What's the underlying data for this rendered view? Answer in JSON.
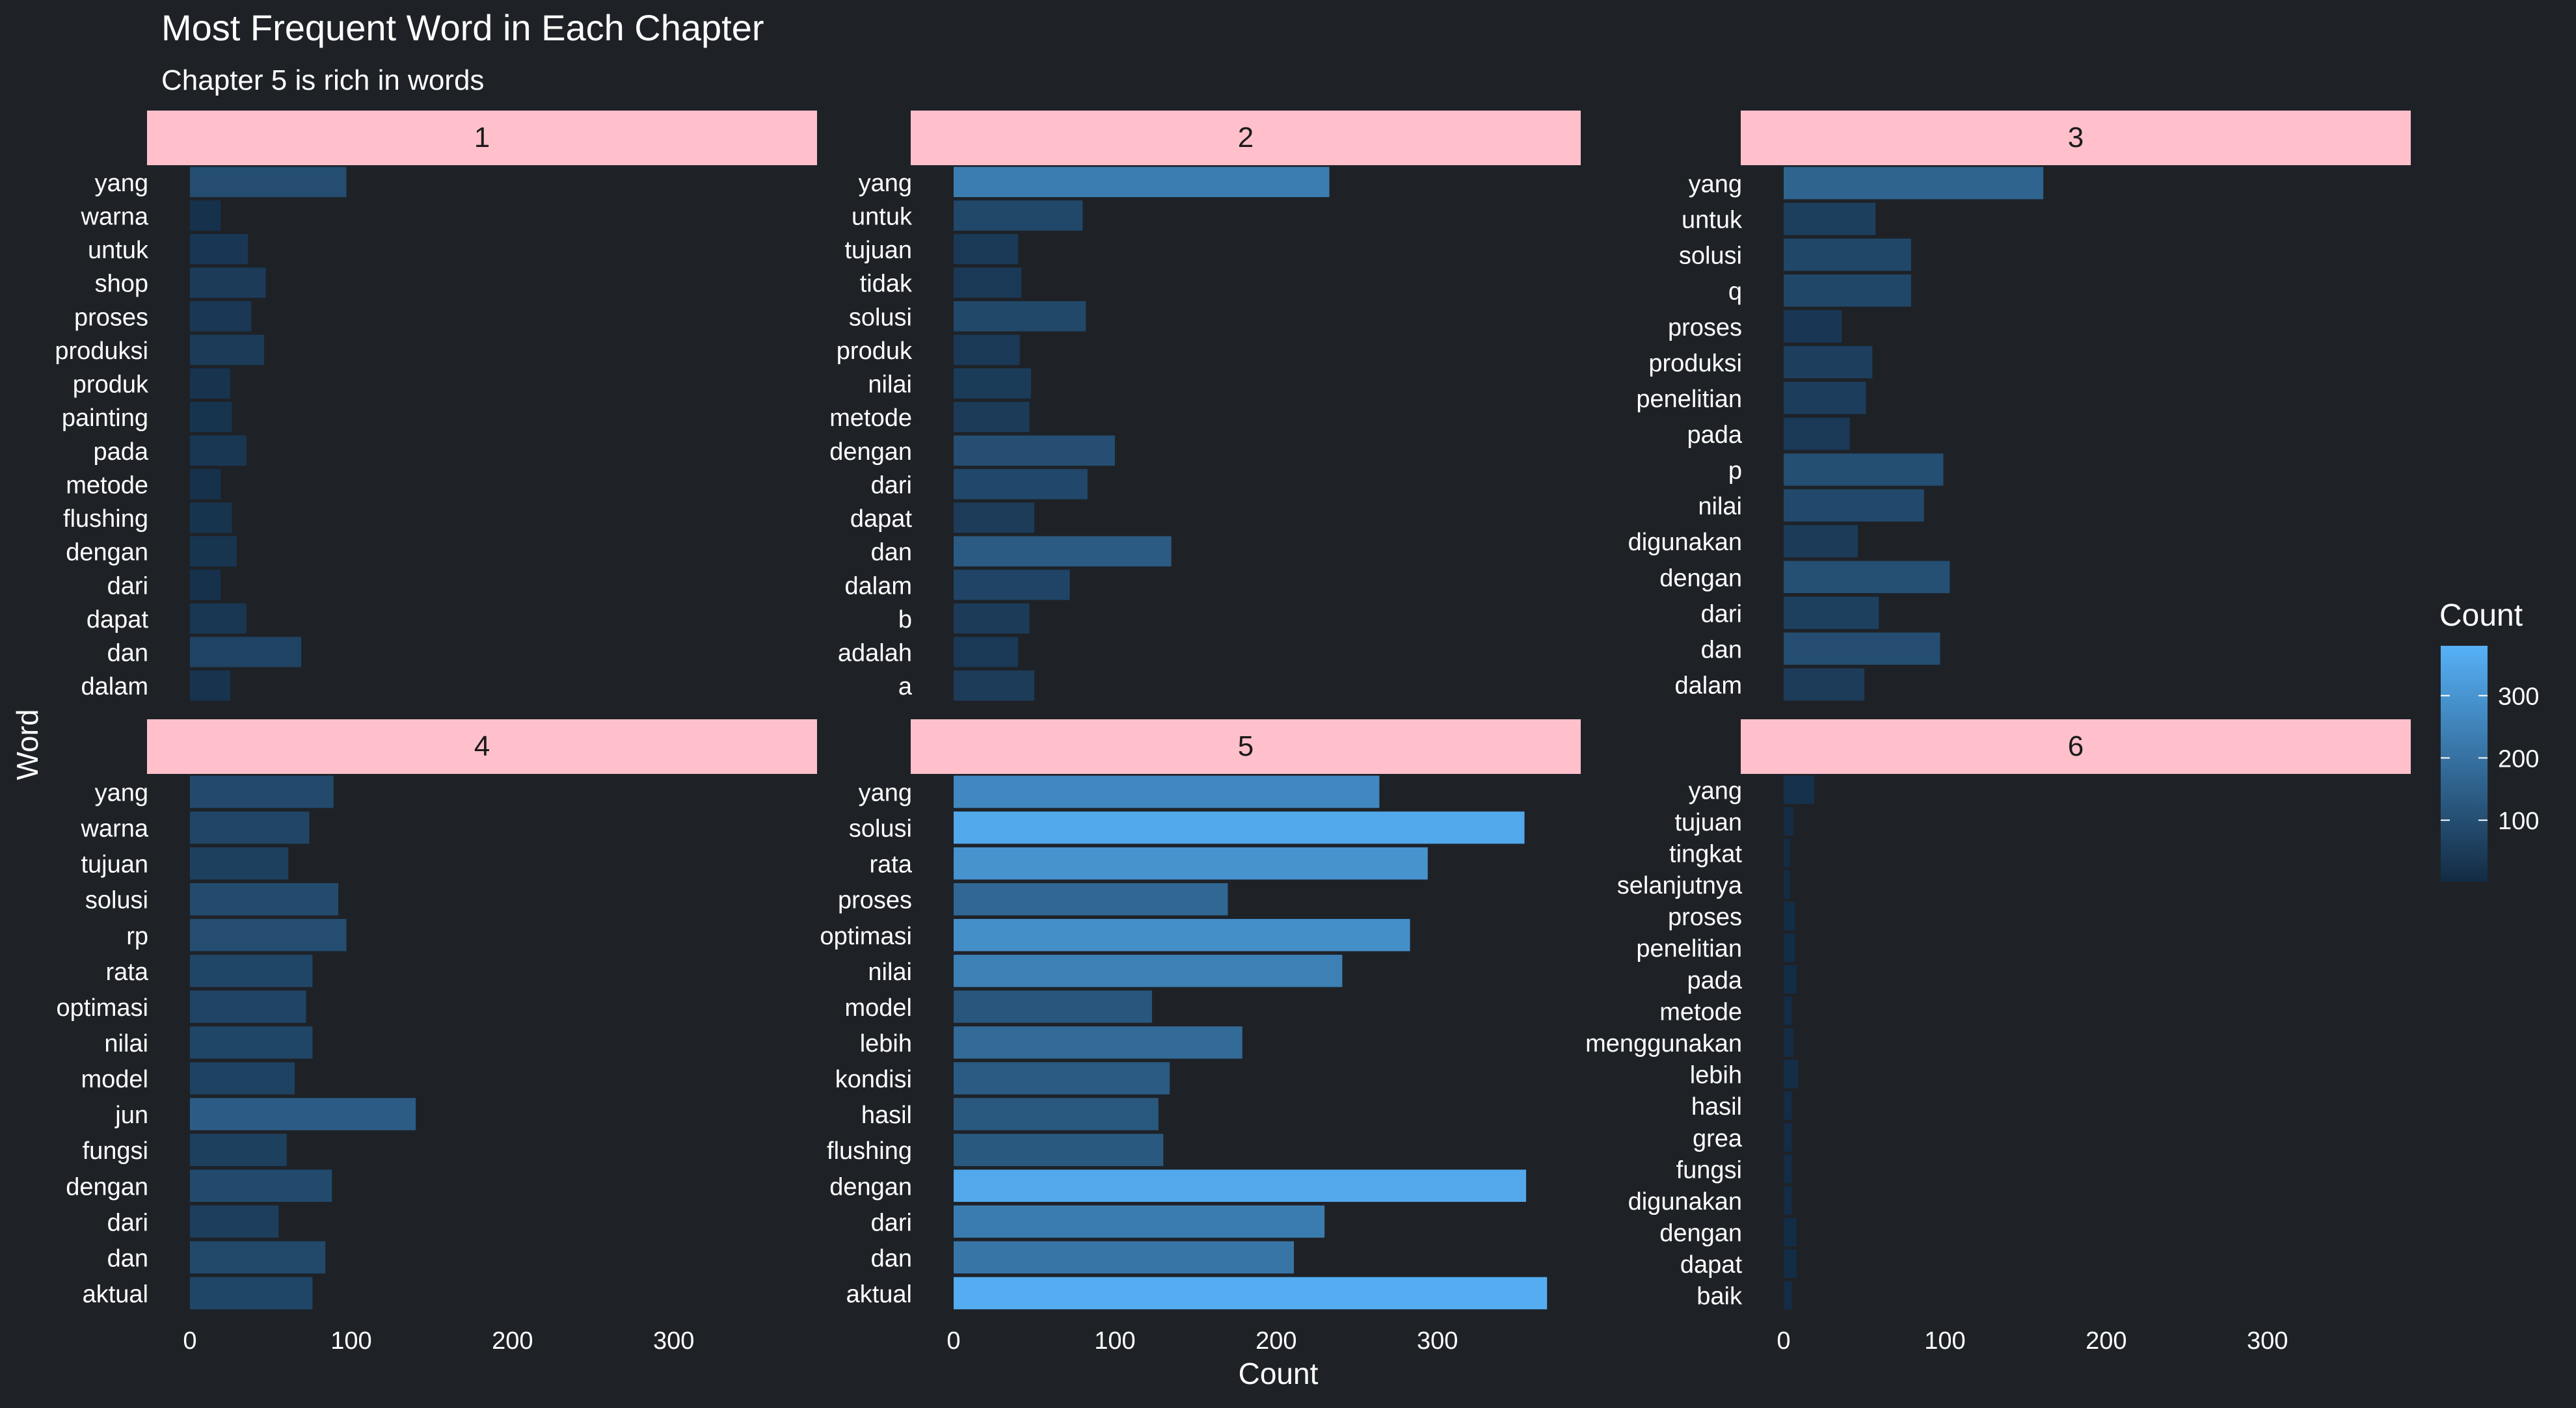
{
  "chart_data": {
    "type": "bar",
    "orientation": "horizontal",
    "title": "Most Frequent Word in Each Chapter",
    "subtitle": "Chapter 5 is rich in words",
    "xlabel": "Count",
    "ylabel": "Word",
    "xlim": [
      0,
      380
    ],
    "x_ticks": [
      0,
      100,
      200,
      300
    ],
    "legend": {
      "title": "Count",
      "position": "right",
      "ticks": [
        100,
        200,
        300
      ],
      "range": [
        1,
        380
      ],
      "low_color": "#132b43",
      "high_color": "#56b1f7"
    },
    "strip_color": "#ffc0cb",
    "panels": [
      {
        "label": "1",
        "categories": [
          "yang",
          "warna",
          "untuk",
          "shop",
          "proses",
          "produksi",
          "produk",
          "painting",
          "pada",
          "metode",
          "flushing",
          "dengan",
          "dari",
          "dapat",
          "dan",
          "dalam"
        ],
        "values": [
          97,
          19,
          36,
          47,
          38,
          46,
          25,
          26,
          35,
          19,
          26,
          29,
          19,
          35,
          69,
          25
        ]
      },
      {
        "label": "2",
        "categories": [
          "yang",
          "untuk",
          "tujuan",
          "tidak",
          "solusi",
          "produk",
          "nilai",
          "metode",
          "dengan",
          "dari",
          "dapat",
          "dan",
          "dalam",
          "b",
          "adalah",
          "a"
        ],
        "values": [
          233,
          80,
          40,
          42,
          82,
          41,
          48,
          47,
          100,
          83,
          50,
          135,
          72,
          47,
          40,
          50
        ]
      },
      {
        "label": "3",
        "categories": [
          "yang",
          "untuk",
          "solusi",
          "q",
          "proses",
          "produksi",
          "penelitian",
          "pada",
          "p",
          "nilai",
          "digunakan",
          "dengan",
          "dari",
          "dan",
          "dalam"
        ],
        "values": [
          161,
          57,
          79,
          79,
          36,
          55,
          51,
          41,
          99,
          87,
          46,
          103,
          59,
          97,
          50
        ]
      },
      {
        "label": "4",
        "categories": [
          "yang",
          "warna",
          "tujuan",
          "solusi",
          "rp",
          "rata",
          "optimasi",
          "nilai",
          "model",
          "jun",
          "fungsi",
          "dengan",
          "dari",
          "dan",
          "aktual"
        ],
        "values": [
          89,
          74,
          61,
          92,
          97,
          76,
          72,
          76,
          65,
          140,
          60,
          88,
          55,
          84,
          76
        ]
      },
      {
        "label": "5",
        "categories": [
          "yang",
          "solusi",
          "rata",
          "proses",
          "optimasi",
          "nilai",
          "model",
          "lebih",
          "kondisi",
          "hasil",
          "flushing",
          "dengan",
          "dari",
          "dan",
          "aktual"
        ],
        "values": [
          264,
          354,
          294,
          170,
          283,
          241,
          123,
          179,
          134,
          127,
          130,
          355,
          230,
          211,
          368
        ]
      },
      {
        "label": "6",
        "categories": [
          "yang",
          "tujuan",
          "tingkat",
          "selanjutnya",
          "proses",
          "penelitian",
          "pada",
          "metode",
          "menggunakan",
          "lebih",
          "hasil",
          "grea",
          "fungsi",
          "digunakan",
          "dengan",
          "dapat",
          "baik"
        ],
        "values": [
          19,
          6,
          4,
          4,
          7,
          7,
          8,
          5,
          6,
          9,
          5,
          5,
          5,
          5,
          8,
          8,
          5
        ]
      }
    ]
  }
}
